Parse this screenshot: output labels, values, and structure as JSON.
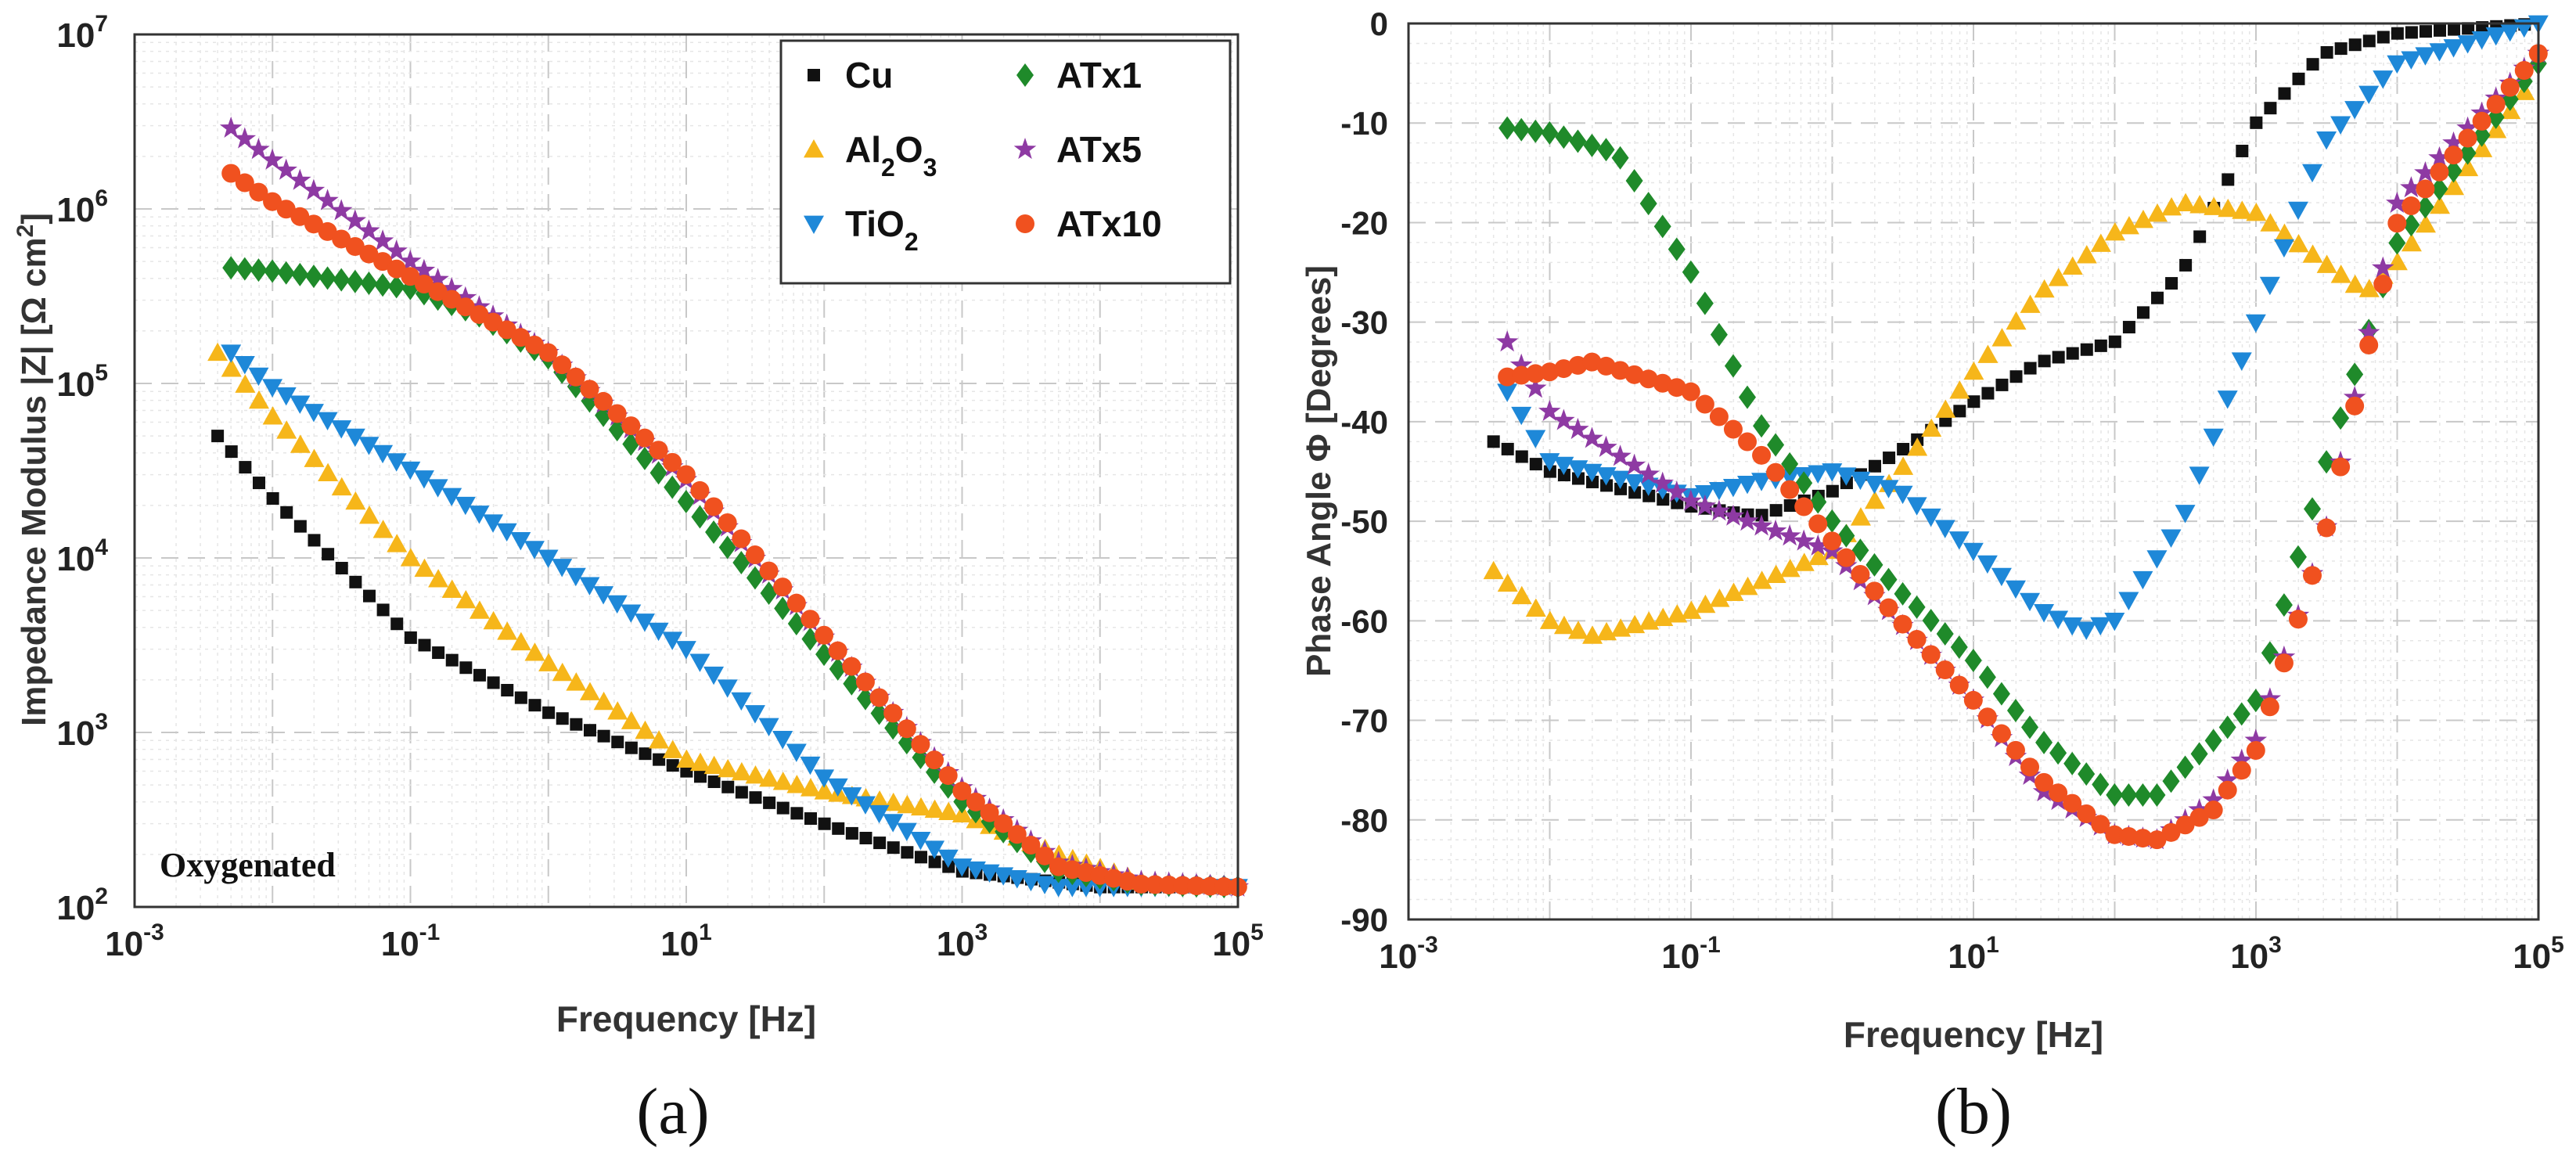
{
  "colors": {
    "Cu": "#111111",
    "Al2O3": "#F6B61A",
    "TiO2": "#1E88D8",
    "ATx1": "#1F8A2A",
    "ATx5": "#8E3AA3",
    "ATx10": "#F0511F"
  },
  "chart_data": [
    {
      "type": "scatter",
      "panel_caption": "(a)",
      "annotation": "Oxygenated",
      "xlabel": "Frequency [Hz]",
      "ylabel": "Impedance Modulus |Z| [Ω cm²]",
      "xscale": "log",
      "yscale": "log",
      "xlim": [
        0.001,
        100000
      ],
      "ylim": [
        100,
        10000000
      ],
      "xticks": [
        {
          "base": "10",
          "exp": "-3"
        },
        {
          "base": "10",
          "exp": "-1"
        },
        {
          "base": "10",
          "exp": "1"
        },
        {
          "base": "10",
          "exp": "3"
        },
        {
          "base": "10",
          "exp": "5"
        }
      ],
      "yticks": [
        {
          "base": "10",
          "exp": "2"
        },
        {
          "base": "10",
          "exp": "3"
        },
        {
          "base": "10",
          "exp": "4"
        },
        {
          "base": "10",
          "exp": "5"
        },
        {
          "base": "10",
          "exp": "6"
        },
        {
          "base": "10",
          "exp": "7"
        }
      ],
      "legend_position": "top-right",
      "legend": [
        {
          "key": "Cu",
          "marker": "square",
          "label_parts": [
            {
              "t": "Cu"
            }
          ]
        },
        {
          "key": "Al2O3",
          "marker": "triangle-up",
          "label_parts": [
            {
              "t": "Al"
            },
            {
              "t": "2",
              "sub": true
            },
            {
              "t": "O"
            },
            {
              "t": "3",
              "sub": true
            }
          ]
        },
        {
          "key": "TiO2",
          "marker": "triangle-down",
          "label_parts": [
            {
              "t": "TiO"
            },
            {
              "t": "2",
              "sub": true
            }
          ]
        },
        {
          "key": "ATx1",
          "marker": "diamond",
          "label_parts": [
            {
              "t": "ATx1"
            }
          ]
        },
        {
          "key": "ATx5",
          "marker": "star",
          "label_parts": [
            {
              "t": "ATx5"
            }
          ]
        },
        {
          "key": "ATx10",
          "marker": "circle",
          "label_parts": [
            {
              "t": "ATx10"
            }
          ]
        }
      ],
      "series": [
        {
          "name": "Cu",
          "f": [
            0.004,
            0.01,
            0.1,
            1,
            10,
            100,
            1000,
            10000,
            100000
          ],
          "values": [
            50000,
            22000,
            3500,
            1300,
            600,
            300,
            160,
            130,
            130
          ]
        },
        {
          "name": "Al2O3",
          "f": [
            0.004,
            0.01,
            0.1,
            1,
            10,
            100,
            1000,
            5000,
            20000,
            100000
          ],
          "values": [
            150000,
            65000,
            10000,
            2500,
            700,
            460,
            340,
            200,
            140,
            130
          ]
        },
        {
          "name": "TiO2",
          "f": [
            0.005,
            0.01,
            0.1,
            1,
            10,
            100,
            1000,
            5000,
            100000
          ],
          "values": [
            150000,
            95000,
            32000,
            10000,
            3000,
            550,
            170,
            130,
            130
          ]
        },
        {
          "name": "ATx1",
          "f": [
            0.005,
            0.01,
            0.1,
            0.3,
            1,
            10,
            100,
            1000,
            5000,
            20000,
            100000
          ],
          "values": [
            460000,
            440000,
            350000,
            250000,
            140000,
            21000,
            2800,
            400,
            160,
            135,
            130
          ]
        },
        {
          "name": "ATx5",
          "f": [
            0.005,
            0.01,
            0.1,
            1,
            10,
            100,
            1000,
            5000,
            20000,
            100000
          ],
          "values": [
            2900000,
            1900000,
            500000,
            150000,
            28000,
            3500,
            480,
            180,
            140,
            130
          ]
        },
        {
          "name": "ATx10",
          "f": [
            0.005,
            0.01,
            0.1,
            1,
            10,
            100,
            1000,
            5000,
            20000,
            100000
          ],
          "values": [
            1600000,
            1100000,
            410000,
            150000,
            30000,
            3600,
            460,
            170,
            135,
            130
          ]
        }
      ]
    },
    {
      "type": "scatter",
      "panel_caption": "(b)",
      "xlabel": "Frequency [Hz]",
      "ylabel": "Phase Angle Φ [Degrees]",
      "xscale": "log",
      "yscale": "linear",
      "xlim": [
        0.001,
        100000
      ],
      "ylim": [
        -90,
        0
      ],
      "xticks": [
        {
          "base": "10",
          "exp": "-3"
        },
        {
          "base": "10",
          "exp": "-1"
        },
        {
          "base": "10",
          "exp": "1"
        },
        {
          "base": "10",
          "exp": "3"
        },
        {
          "base": "10",
          "exp": "5"
        }
      ],
      "yticks": [
        "0",
        "-10",
        "-20",
        "-30",
        "-40",
        "-50",
        "-60",
        "-70",
        "-80",
        "-90"
      ],
      "series": [
        {
          "name": "Cu",
          "f": [
            0.004,
            0.01,
            0.1,
            0.3,
            1,
            3,
            10,
            30,
            100,
            300,
            1000,
            3000,
            10000,
            100000
          ],
          "values": [
            -42,
            -45,
            -48.5,
            -49.5,
            -47,
            -43,
            -38,
            -34,
            -32,
            -25,
            -10,
            -3,
            -1,
            0
          ]
        },
        {
          "name": "Al2O3",
          "f": [
            0.004,
            0.01,
            0.02,
            0.1,
            1,
            3,
            10,
            30,
            100,
            300,
            1000,
            3000,
            6000,
            10000,
            30000,
            100000
          ],
          "values": [
            -55,
            -60,
            -61.5,
            -59,
            -53,
            -45,
            -35,
            -27,
            -21,
            -18,
            -19,
            -24,
            -27,
            -24,
            -15,
            -5
          ]
        },
        {
          "name": "TiO2",
          "f": [
            0.005,
            0.01,
            0.1,
            0.3,
            1,
            3,
            10,
            30,
            60,
            100,
            300,
            1000,
            3000,
            10000,
            100000
          ],
          "values": [
            -37,
            -44,
            -47.5,
            -46,
            -45,
            -47,
            -53,
            -59,
            -61,
            -60,
            -50,
            -30,
            -12,
            -4,
            0
          ]
        },
        {
          "name": "ATx1",
          "f": [
            0.005,
            0.01,
            0.03,
            0.1,
            0.3,
            1,
            3,
            10,
            30,
            100,
            200,
            300,
            1000,
            3000,
            10000,
            100000
          ],
          "values": [
            -10.5,
            -11,
            -13,
            -25,
            -40,
            -50,
            -57,
            -64,
            -72,
            -77.5,
            -77.5,
            -75,
            -68,
            -45,
            -22,
            -4
          ]
        },
        {
          "name": "ATx5",
          "f": [
            0.005,
            0.01,
            0.1,
            1,
            10,
            30,
            100,
            200,
            500,
            1000,
            3000,
            10000,
            100000
          ],
          "values": [
            -32,
            -39,
            -48,
            -53,
            -68,
            -77,
            -81.5,
            -82,
            -78,
            -72,
            -52,
            -18,
            -3
          ]
        },
        {
          "name": "ATx10",
          "f": [
            0.005,
            0.01,
            0.02,
            0.1,
            0.3,
            1,
            3,
            10,
            30,
            100,
            200,
            500,
            1000,
            3000,
            10000,
            100000
          ],
          "values": [
            -35.5,
            -35,
            -34,
            -37,
            -43,
            -52,
            -60,
            -68,
            -76,
            -81.5,
            -82,
            -79,
            -73,
            -52,
            -20,
            -3
          ]
        }
      ]
    }
  ]
}
